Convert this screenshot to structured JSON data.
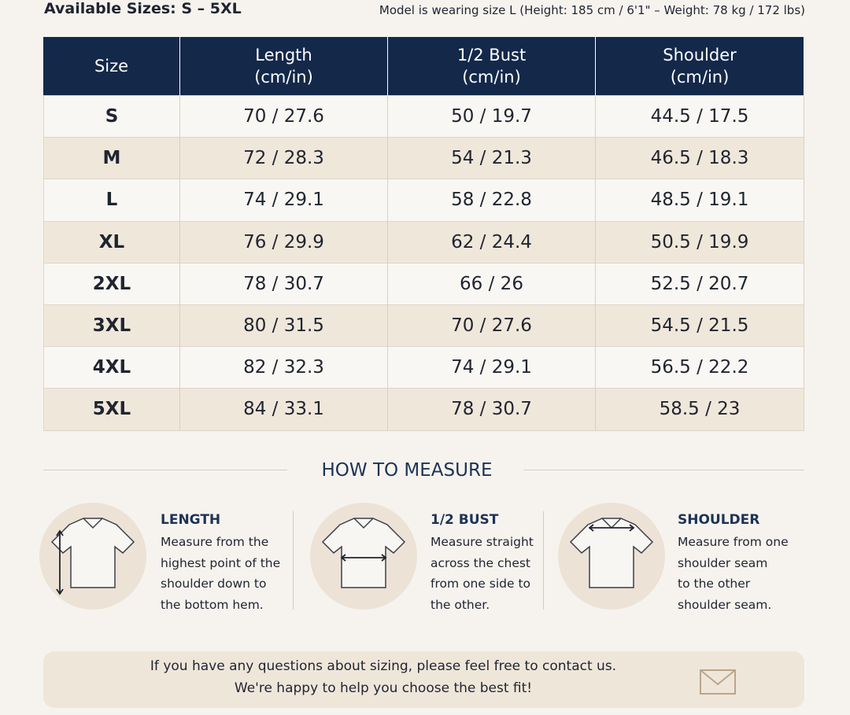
{
  "header": {
    "available": "Available Sizes: S – 5XL",
    "model": "Model is wearing size L (Height: 185 cm / 6'1\" – Weight: 78 kg / 172 lbs)"
  },
  "table": {
    "headers": [
      [
        "Size"
      ],
      [
        "Length",
        "(cm/in)"
      ],
      [
        "1/2 Bust",
        "(cm/in)"
      ],
      [
        "Shoulder",
        "(cm/in)"
      ]
    ],
    "rows": [
      [
        "S",
        "70 / 27.6",
        "50 / 19.7",
        "44.5 / 17.5"
      ],
      [
        "M",
        "72 / 28.3",
        "54 / 21.3",
        "46.5 / 18.3"
      ],
      [
        "L",
        "74 / 29.1",
        "58 / 22.8",
        "48.5 / 19.1"
      ],
      [
        "XL",
        "76 / 29.9",
        "62 / 24.4",
        "50.5 / 19.9"
      ],
      [
        "2XL",
        "78 / 30.7",
        "66 / 26",
        "52.5 / 20.7"
      ],
      [
        "3XL",
        "80 / 31.5",
        "70 / 27.6",
        "54.5 / 21.5"
      ],
      [
        "4XL",
        "82 / 32.3",
        "74 / 29.1",
        "56.5 / 22.2"
      ],
      [
        "5XL",
        "84 / 33.1",
        "78 / 30.7",
        "58.5 / 23"
      ]
    ]
  },
  "measure": {
    "title": "HOW TO MEASURE",
    "items": [
      {
        "title": "LENGTH",
        "lines": [
          "Measure from the",
          "highest point of the",
          "shoulder down to",
          "the bottom hem."
        ]
      },
      {
        "title": "1/2 BUST",
        "lines": [
          "Measure straight",
          "across the chest",
          "from one side to",
          "the other."
        ]
      },
      {
        "title": "SHOULDER",
        "lines": [
          "Measure from one",
          "shoulder seam",
          "to the other",
          "shoulder seam."
        ]
      }
    ]
  },
  "footer": {
    "lines": [
      "If you have any questions about sizing, please feel free to contact us.",
      "We're happy to help you choose the best fit!"
    ]
  }
}
